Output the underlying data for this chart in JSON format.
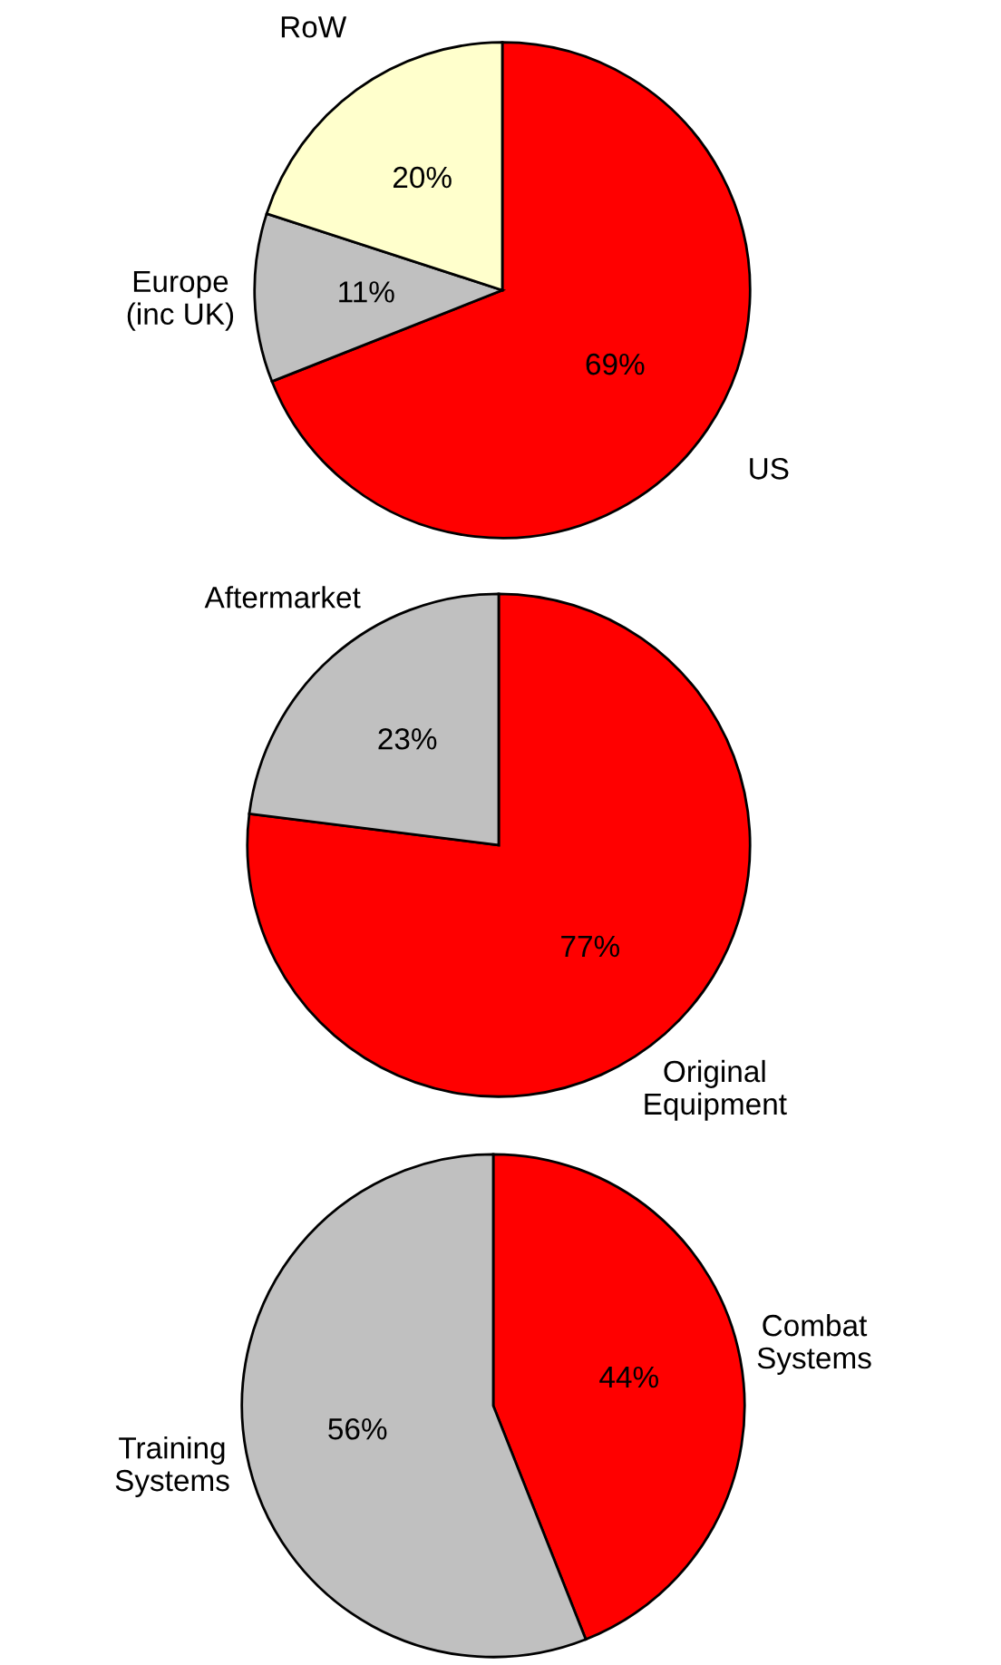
{
  "chart_data": [
    {
      "type": "pie",
      "categories": [
        "US",
        "Europe\n(inc UK)",
        "RoW"
      ],
      "values": [
        69,
        11,
        20
      ],
      "colors": [
        "#ff0000",
        "#c0c0c0",
        "#ffffcc"
      ],
      "value_labels": [
        "69%",
        "11%",
        "20%"
      ]
    },
    {
      "type": "pie",
      "categories": [
        "Original\nEquipment",
        "Aftermarket"
      ],
      "values": [
        77,
        23
      ],
      "colors": [
        "#ff0000",
        "#c0c0c0"
      ],
      "value_labels": [
        "77%",
        "23%"
      ]
    },
    {
      "type": "pie",
      "categories": [
        "Combat\nSystems",
        "Training\nSystems"
      ],
      "values": [
        44,
        56
      ],
      "colors": [
        "#ff0000",
        "#c0c0c0"
      ],
      "value_labels": [
        "44%",
        "56%"
      ]
    }
  ]
}
